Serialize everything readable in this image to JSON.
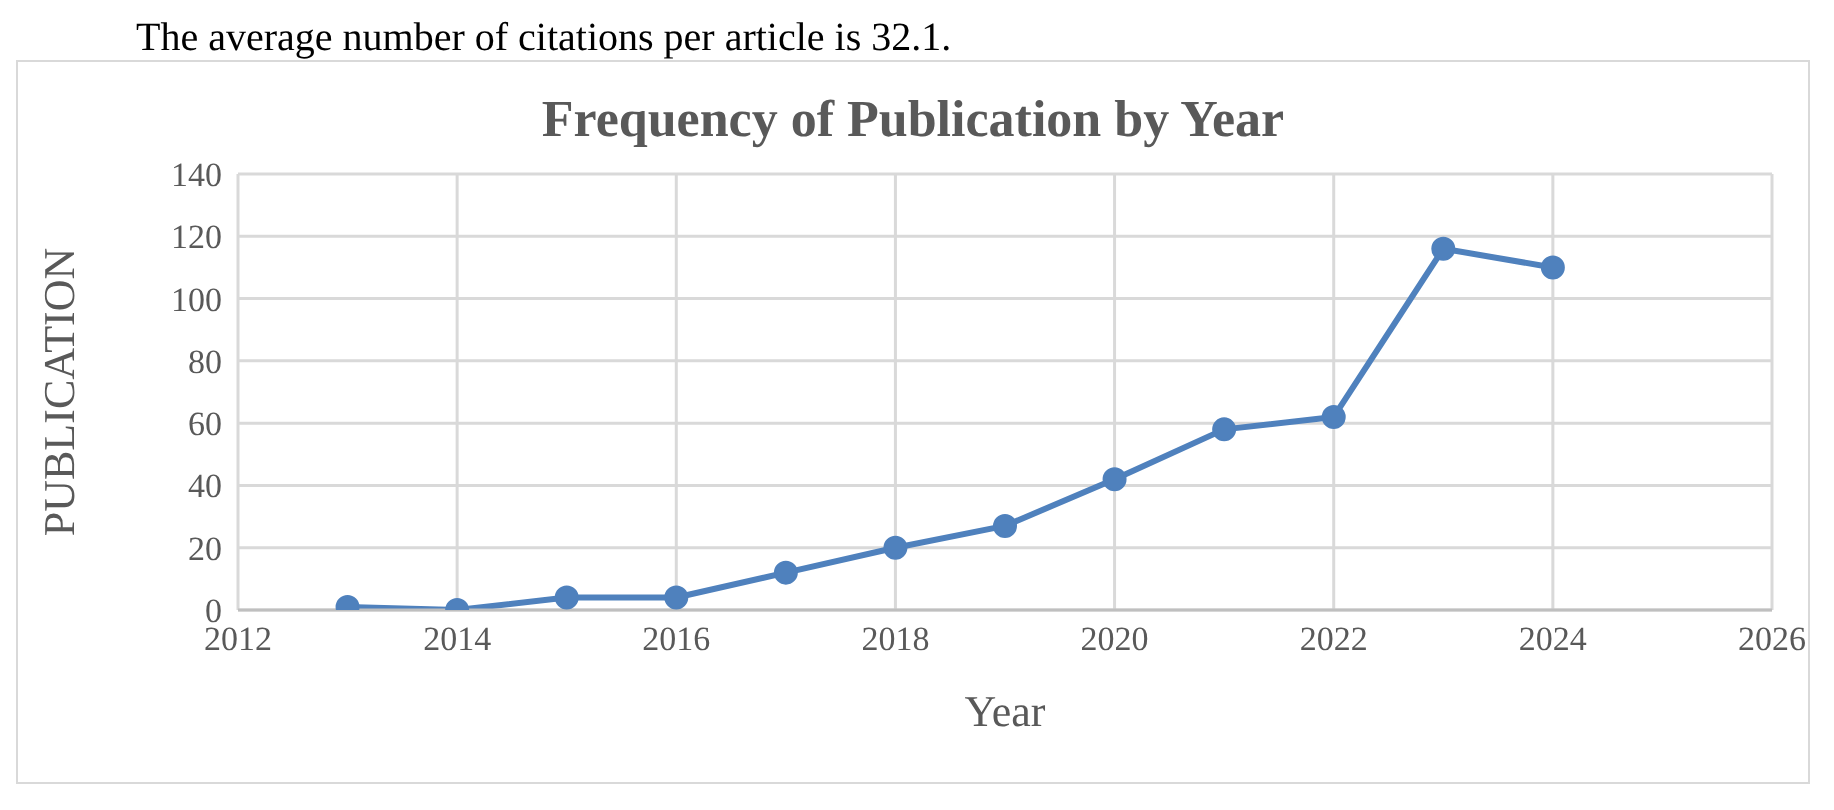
{
  "chart_data": {
    "type": "line",
    "title": "Frequency of Publication by Year",
    "xlabel": "Year",
    "ylabel": "PUBLICATION",
    "annotations": [
      "The average number of citations per article is 32.1."
    ],
    "x": [
      2013,
      2014,
      2015,
      2016,
      2017,
      2018,
      2019,
      2020,
      2021,
      2022,
      2023,
      2024
    ],
    "series": [
      {
        "color": "#4f81bd",
        "values": [
          1,
          0,
          4,
          4,
          12,
          20,
          27,
          42,
          58,
          62,
          116,
          110
        ]
      }
    ],
    "xlim": [
      2012,
      2026
    ],
    "xticks": [
      2012,
      2014,
      2016,
      2018,
      2020,
      2022,
      2024,
      2026
    ],
    "ylim": [
      0,
      140
    ],
    "yticks": [
      0,
      20,
      40,
      60,
      80,
      100,
      120,
      140
    ],
    "grid": true,
    "legend": false,
    "marker": "circle",
    "line_style": "solid"
  }
}
